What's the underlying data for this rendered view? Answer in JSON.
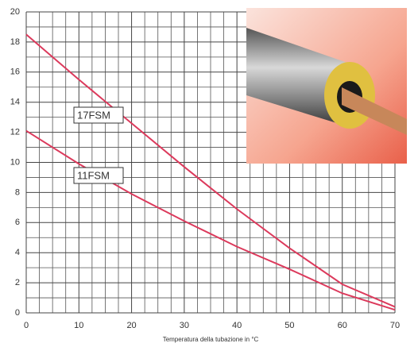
{
  "chart_data": {
    "type": "line",
    "x_label": "Temperatura della tubazione in °C",
    "x": [
      0,
      10,
      20,
      30,
      40,
      50,
      60,
      70
    ],
    "series": [
      {
        "name": "17FSM",
        "color": "#dc3a5c",
        "values": [
          18.5,
          15.5,
          12.6,
          9.7,
          6.9,
          4.3,
          1.9,
          0.4
        ]
      },
      {
        "name": "11FSM",
        "color": "#dc3a5c",
        "values": [
          12.1,
          9.9,
          7.9,
          6.1,
          4.4,
          2.9,
          1.3,
          0.2
        ]
      }
    ],
    "xlim": [
      0,
      70
    ],
    "xticks": [
      0,
      10,
      20,
      30,
      40,
      50,
      60,
      70
    ],
    "ylim": [
      0,
      20
    ],
    "yticks": [
      0,
      2,
      4,
      6,
      8,
      10,
      12,
      14,
      16,
      18,
      20
    ],
    "grid": true
  }
}
